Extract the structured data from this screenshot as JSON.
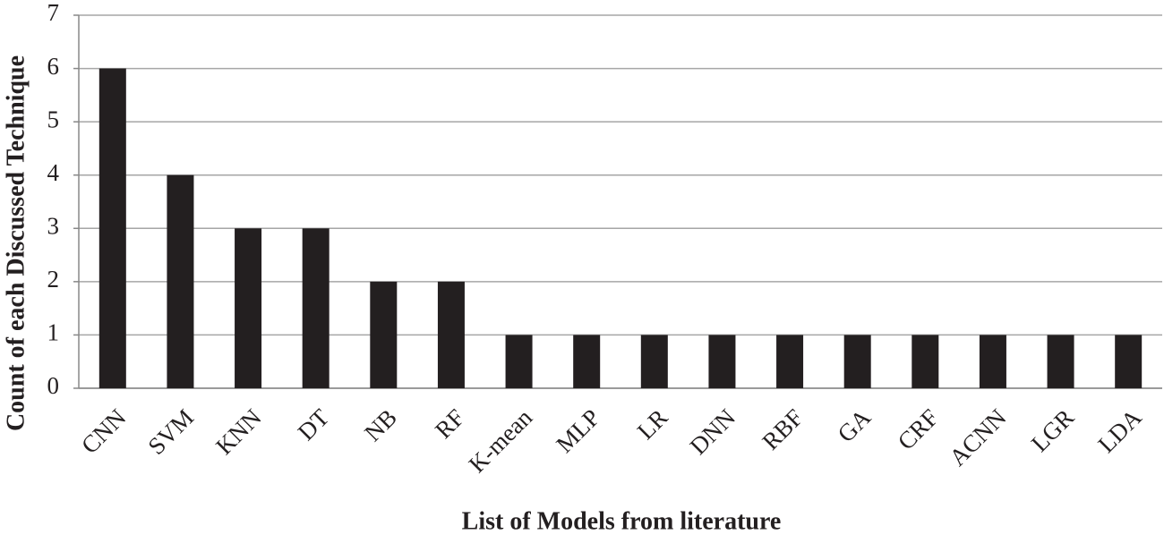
{
  "chart_data": {
    "type": "bar",
    "x_label": "List of Models from literature",
    "y_label": "Count of each Discussed Technique",
    "categories": [
      "CNN",
      "SVM",
      "KNN",
      "DT",
      "NB",
      "RF",
      "K-mean",
      "MLP",
      "LR",
      "DNN",
      "RBF",
      "GA",
      "CRF",
      "ACNN",
      "LGR",
      "LDA"
    ],
    "values": [
      6,
      4,
      3,
      3,
      2,
      2,
      1,
      1,
      1,
      1,
      1,
      1,
      1,
      1,
      1,
      1
    ],
    "color": "#231f20",
    "ylim": [
      0,
      7
    ],
    "yticks": [
      0,
      1,
      2,
      3,
      4,
      5,
      6,
      7
    ],
    "grid": true
  }
}
